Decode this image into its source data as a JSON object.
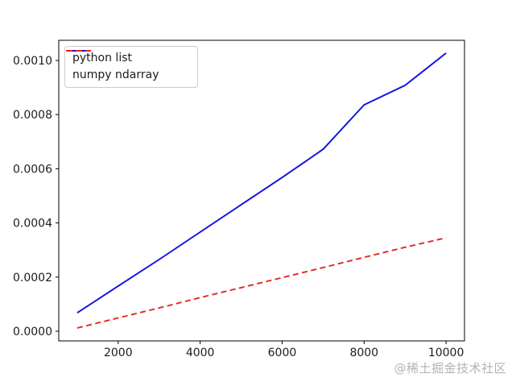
{
  "figure": {
    "background": "#ffffff",
    "watermark": "@稀土掘金技术社区",
    "watermark_color": "#b3b3b3",
    "spine_color": "#000000",
    "tick_text_color": "#1c1c1c"
  },
  "chart_data": {
    "type": "line",
    "title": "",
    "xlabel": "",
    "ylabel": "",
    "grid": false,
    "x": [
      1000,
      2000,
      3000,
      4000,
      5000,
      6000,
      7000,
      8000,
      9000,
      10000
    ],
    "series": [
      {
        "name": "python list",
        "color": "#0f0fe0",
        "line_style": "solid",
        "values": [
          6.8e-05,
          0.000167,
          0.000265,
          0.000366,
          0.000467,
          0.000568,
          0.000672,
          0.000836,
          0.000908,
          0.001027
        ]
      },
      {
        "name": "numpy ndarray",
        "color": "#e3261d",
        "line_style": "dashed",
        "values": [
          1.2e-05,
          4.9e-05,
          8.6e-05,
          0.000124,
          0.000161,
          0.000198,
          0.000235,
          0.000273,
          0.00031,
          0.000345
        ]
      }
    ],
    "xlim": [
      550,
      10450
    ],
    "ylim": [
      -3.57e-05,
      0.0010744
    ],
    "xticks": [
      2000,
      4000,
      6000,
      8000,
      10000
    ],
    "xtick_labels": [
      "2000",
      "4000",
      "6000",
      "8000",
      "10000"
    ],
    "ytick_values": [
      0.0,
      0.0002,
      0.0004,
      0.0006,
      0.0008,
      0.001
    ],
    "ytick_labels": [
      "0.0000",
      "0.0002",
      "0.0004",
      "0.0006",
      "0.0008",
      "0.0010"
    ],
    "legend": {
      "position": "upper left",
      "entries": [
        "python list",
        "numpy ndarray"
      ]
    }
  }
}
